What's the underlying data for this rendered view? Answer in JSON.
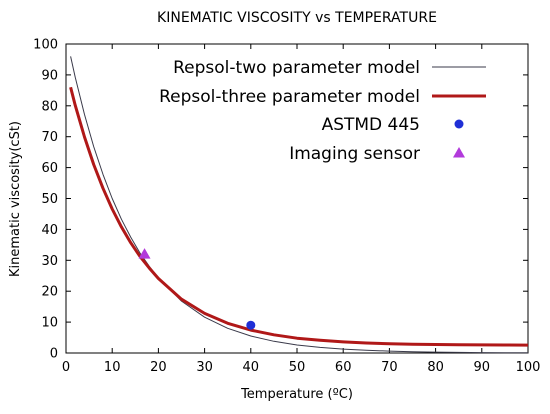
{
  "chart_data": {
    "type": "line",
    "title": "KINEMATIC VISCOSITY vs TEMPERATURE",
    "xlabel": "Temperature (ºC)",
    "ylabel": "Kinematic viscosity(cSt)",
    "xlim": [
      0,
      100
    ],
    "ylim": [
      0,
      100
    ],
    "xticks": [
      0,
      10,
      20,
      30,
      40,
      50,
      60,
      70,
      80,
      90,
      100
    ],
    "yticks": [
      0,
      10,
      20,
      30,
      40,
      50,
      60,
      70,
      80,
      90,
      100
    ],
    "grid": false,
    "legend_position": "top-right",
    "series": [
      {
        "name": "Repsol-two parameter model",
        "kind": "line",
        "color": "#3a3a4a",
        "x": [
          1,
          2,
          4,
          6,
          8,
          10,
          12,
          14,
          16,
          18,
          20,
          25,
          30,
          35,
          40,
          45,
          50,
          55,
          60,
          65,
          70,
          75,
          80,
          85,
          90,
          95,
          100
        ],
        "y": [
          96.0,
          89.3,
          77.2,
          66.8,
          57.8,
          50.0,
          43.3,
          37.5,
          32.4,
          28.1,
          24.3,
          16.8,
          11.6,
          8.0,
          5.5,
          3.8,
          2.6,
          1.8,
          1.25,
          0.87,
          0.6,
          0.42,
          0.29,
          0.2,
          0.14,
          0.1,
          0.07
        ]
      },
      {
        "name": "Repsol-three parameter model",
        "kind": "line",
        "color": "#b01818",
        "x": [
          1,
          2,
          4,
          6,
          8,
          10,
          12,
          14,
          16,
          18,
          20,
          25,
          30,
          35,
          40,
          45,
          50,
          55,
          60,
          65,
          70,
          75,
          80,
          85,
          90,
          95,
          100
        ],
        "y": [
          86.0,
          80.2,
          69.9,
          61.0,
          53.3,
          46.6,
          40.8,
          35.7,
          31.3,
          27.5,
          24.1,
          17.4,
          12.8,
          9.6,
          7.4,
          5.9,
          4.8,
          4.1,
          3.6,
          3.25,
          3.0,
          2.85,
          2.75,
          2.67,
          2.62,
          2.58,
          2.55
        ]
      },
      {
        "name": "ASTMD 445",
        "kind": "scatter",
        "marker": "circle",
        "color": "#1f2fd6",
        "x": [
          40
        ],
        "y": [
          9
        ]
      },
      {
        "name": "Imaging sensor",
        "kind": "scatter",
        "marker": "triangle",
        "color": "#b23adb",
        "x": [
          17
        ],
        "y": [
          32
        ]
      }
    ]
  }
}
